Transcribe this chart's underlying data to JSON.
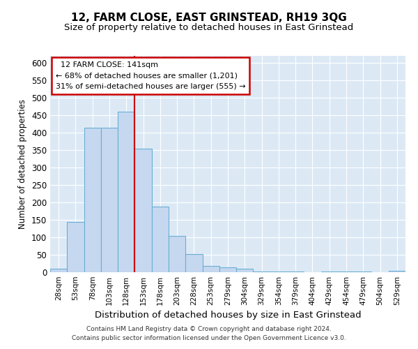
{
  "title": "12, FARM CLOSE, EAST GRINSTEAD, RH19 3QG",
  "subtitle": "Size of property relative to detached houses in East Grinstead",
  "xlabel": "Distribution of detached houses by size in East Grinstead",
  "ylabel": "Number of detached properties",
  "footer_line1": "Contains HM Land Registry data © Crown copyright and database right 2024.",
  "footer_line2": "Contains public sector information licensed under the Open Government Licence v3.0.",
  "annotation_line1": "12 FARM CLOSE: 141sqm",
  "annotation_line2": "← 68% of detached houses are smaller (1,201)",
  "annotation_line3": "31% of semi-detached houses are larger (555) →",
  "bar_color": "#c5d8ef",
  "bar_edge_color": "#6aaed6",
  "vline_color": "#cc0000",
  "annotation_box_edgecolor": "#cc0000",
  "background_color": "#dce9f5",
  "categories": [
    "28sqm",
    "53sqm",
    "78sqm",
    "103sqm",
    "128sqm",
    "153sqm",
    "178sqm",
    "203sqm",
    "228sqm",
    "253sqm",
    "279sqm",
    "304sqm",
    "329sqm",
    "354sqm",
    "379sqm",
    "404sqm",
    "429sqm",
    "454sqm",
    "479sqm",
    "504sqm",
    "529sqm"
  ],
  "values": [
    10,
    145,
    415,
    415,
    460,
    355,
    188,
    105,
    53,
    18,
    15,
    10,
    3,
    3,
    3,
    0,
    3,
    3,
    3,
    0,
    5
  ],
  "ylim": [
    0,
    620
  ],
  "yticks": [
    0,
    50,
    100,
    150,
    200,
    250,
    300,
    350,
    400,
    450,
    500,
    550,
    600
  ],
  "vline_x": 4.5
}
